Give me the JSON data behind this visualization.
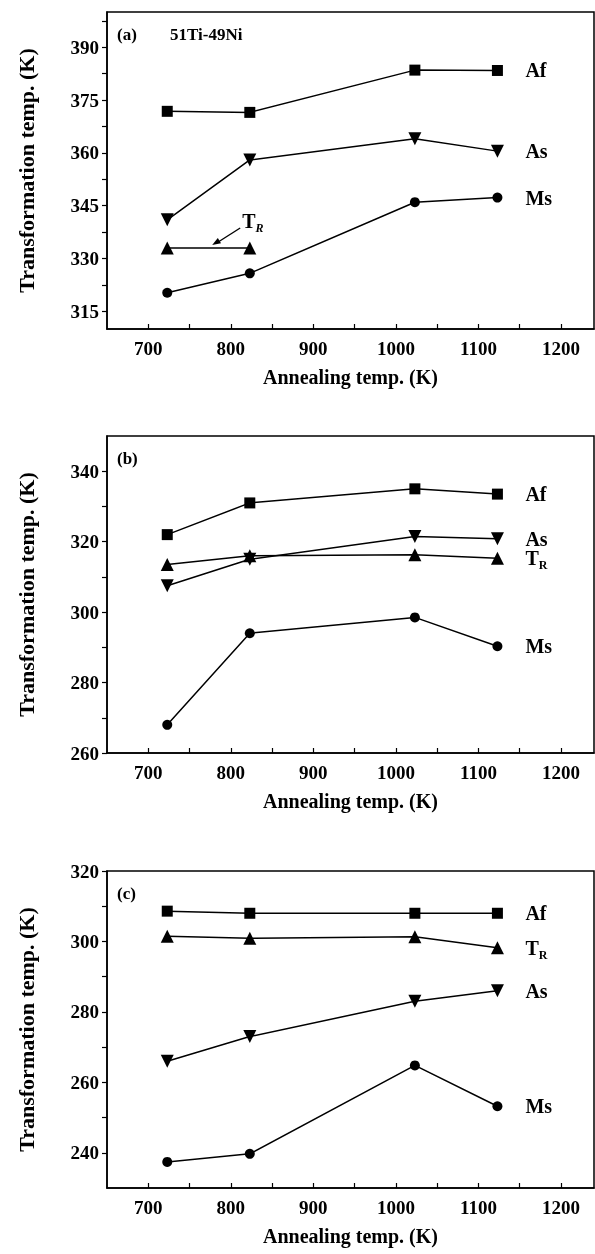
{
  "chart_data": [
    {
      "type": "line",
      "annotations": [
        "(a)",
        "51Ti-49Ni",
        {
          "text": "T$_{R}$",
          "x": 775,
          "y": 333
        }
      ],
      "xlabel": "Annealing temp. (K)",
      "ylabel": "Transformation temp. (K)",
      "x": [
        723,
        823,
        1023,
        1123
      ],
      "xlim": [
        650,
        1240
      ],
      "xticks": [
        700,
        {
          "value": 750,
          "label": null
        },
        800,
        {
          "value": 850,
          "label": null
        },
        900,
        {
          "value": 950,
          "label": null
        },
        1000,
        {
          "value": 1050,
          "label": null
        },
        1100,
        {
          "value": 1150,
          "label": null
        },
        1200
      ],
      "ylim": [
        310,
        400
      ],
      "yticks": [
        315,
        {
          "value": 322.5,
          "label": null
        },
        330,
        {
          "value": 337.5,
          "label": null
        },
        345,
        {
          "value": 352.5,
          "label": null
        },
        360,
        {
          "value": 367.5,
          "label": null
        },
        375,
        {
          "value": 382.5,
          "label": null
        },
        390,
        {
          "value": 397.5,
          "label": null
        }
      ],
      "grid": false,
      "legend": false,
      "line_style": "solid",
      "series": [
        {
          "name": "Af",
          "color": "#000000",
          "marker": "square",
          "values": [
            371.8,
            371.5,
            383.5,
            383.4
          ]
        },
        {
          "name": "As",
          "color": "#000000",
          "marker": "triangle-down",
          "values": [
            341,
            358,
            364,
            360.5
          ]
        },
        {
          "color": "#000000",
          "marker": "triangle",
          "values": [
            333,
            333,
            null,
            null
          ]
        },
        {
          "name": "Ms",
          "color": "#000000",
          "marker": "circle",
          "values": [
            320.3,
            325.8,
            346,
            347.3
          ]
        }
      ]
    },
    {
      "type": "line",
      "annotations": [
        "(b)"
      ],
      "xlabel": "Annealing temp. (K)",
      "ylabel": "Transformation temp. (K)",
      "x": [
        723,
        823,
        1023,
        1123
      ],
      "xlim": [
        650,
        1240
      ],
      "xticks": [
        700,
        {
          "value": 750,
          "label": null
        },
        800,
        {
          "value": 850,
          "label": null
        },
        900,
        {
          "value": 950,
          "label": null
        },
        1000,
        {
          "value": 1050,
          "label": null
        },
        1100,
        {
          "value": 1150,
          "label": null
        },
        1200
      ],
      "ylim": [
        260,
        350
      ],
      "yticks": [
        260,
        {
          "value": 270,
          "label": null
        },
        280,
        {
          "value": 290,
          "label": null
        },
        300,
        {
          "value": 310,
          "label": null
        },
        320,
        {
          "value": 330,
          "label": null
        },
        340
      ],
      "grid": false,
      "legend": false,
      "line_style": "solid",
      "series": [
        {
          "name": "Af",
          "color": "#000000",
          "marker": "square",
          "values": [
            322,
            331,
            335,
            333.5
          ]
        },
        {
          "name": "As",
          "color": "#000000",
          "marker": "triangle-down",
          "values": [
            307.5,
            315,
            321.5,
            320.8
          ]
        },
        {
          "name": "T$_{R}$",
          "color": "#000000",
          "marker": "triangle",
          "values": [
            313.5,
            316,
            316.3,
            315.3
          ]
        },
        {
          "name": "Ms",
          "color": "#000000",
          "marker": "circle",
          "values": [
            268,
            294,
            298.5,
            290.3
          ]
        }
      ]
    },
    {
      "type": "line",
      "annotations": [
        "(c)"
      ],
      "xlabel": "Annealing temp. (K)",
      "ylabel": "Transformation temp. (K)",
      "x": [
        723,
        823,
        1023,
        1123
      ],
      "xlim": [
        650,
        1240
      ],
      "xticks": [
        700,
        {
          "value": 750,
          "label": null
        },
        800,
        {
          "value": 850,
          "label": null
        },
        900,
        {
          "value": 950,
          "label": null
        },
        1000,
        {
          "value": 1050,
          "label": null
        },
        1100,
        {
          "value": 1150,
          "label": null
        },
        1200
      ],
      "ylim": [
        230,
        320
      ],
      "yticks": [
        240,
        {
          "value": 250,
          "label": null
        },
        260,
        {
          "value": 270,
          "label": null
        },
        280,
        {
          "value": 290,
          "label": null
        },
        300,
        {
          "value": 310,
          "label": null
        },
        320
      ],
      "grid": false,
      "legend": false,
      "line_style": "solid",
      "series": [
        {
          "name": "Af",
          "color": "#000000",
          "marker": "square",
          "values": [
            308.6,
            308,
            308,
            308
          ]
        },
        {
          "name": "T$_{R}$",
          "color": "#000000",
          "marker": "triangle",
          "values": [
            301.5,
            300.9,
            301.3,
            298.2
          ]
        },
        {
          "name": "As",
          "color": "#000000",
          "marker": "triangle-down",
          "values": [
            266,
            273,
            283,
            286
          ]
        },
        {
          "name": "Ms",
          "color": "#000000",
          "marker": "circle",
          "values": [
            237.4,
            239.7,
            264.8,
            253.2
          ]
        }
      ]
    }
  ]
}
